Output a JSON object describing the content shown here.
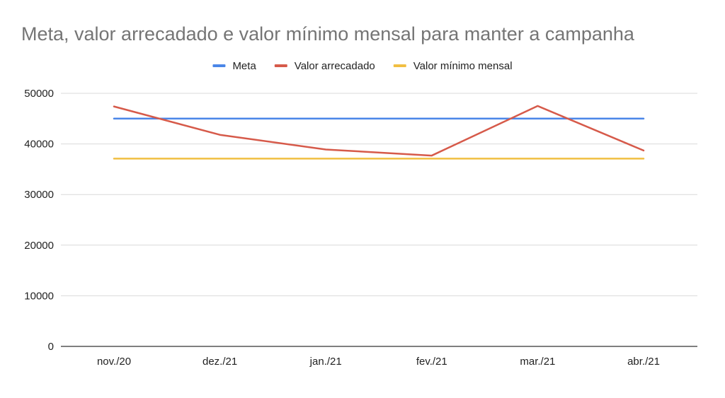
{
  "chart_data": {
    "type": "line",
    "title": "Meta, valor arrecadado e valor mínimo mensal para manter a campanha",
    "xlabel": "",
    "ylabel": "",
    "categories": [
      "nov./20",
      "dez./21",
      "jan./21",
      "fev./21",
      "mar./21",
      "abr./21"
    ],
    "yticks": [
      "0",
      "10000",
      "20000",
      "30000",
      "40000",
      "50000"
    ],
    "ylim": [
      0,
      50000
    ],
    "grid": true,
    "legend_position": "top",
    "series": [
      {
        "name": "Meta",
        "color": "#4a86e8",
        "values": [
          45000,
          45000,
          45000,
          45000,
          45000,
          45000
        ]
      },
      {
        "name": "Valor arrecadado",
        "color": "#d65a4a",
        "values": [
          47400,
          41800,
          38900,
          37700,
          47500,
          38700
        ]
      },
      {
        "name": "Valor mínimo mensal",
        "color": "#f1bf42",
        "values": [
          37100,
          37100,
          37100,
          37100,
          37100,
          37100
        ]
      }
    ]
  }
}
